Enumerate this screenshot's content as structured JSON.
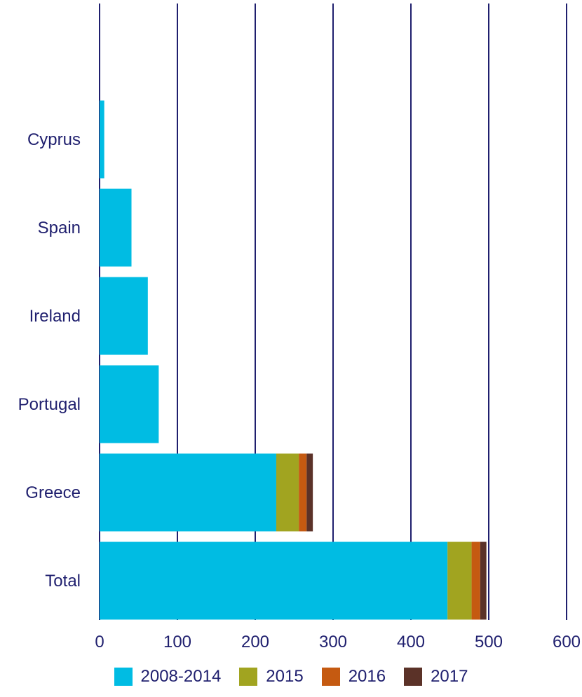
{
  "chart_data": {
    "type": "bar",
    "orientation": "horizontal",
    "stacked": true,
    "title": "",
    "xlabel": "",
    "ylabel": "",
    "categories": [
      "Cyprus",
      "Spain",
      "Ireland",
      "Portugal",
      "Greece",
      "Total"
    ],
    "series": [
      {
        "name": "2008-2014",
        "color": "#00bce3",
        "values": [
          6,
          41,
          62,
          76,
          227,
          447
        ]
      },
      {
        "name": "2015",
        "color": "#a1a420",
        "values": [
          0,
          0,
          0,
          0,
          29,
          31
        ]
      },
      {
        "name": "2016",
        "color": "#c55a11",
        "values": [
          0,
          0,
          0,
          0,
          10,
          11
        ]
      },
      {
        "name": "2017",
        "color": "#5b3228",
        "values": [
          0,
          0,
          0,
          0,
          8,
          8
        ]
      }
    ],
    "xlim": [
      0,
      600
    ],
    "xticks": [
      "0",
      "100",
      "200",
      "300",
      "400",
      "500",
      "600"
    ],
    "xtick_values": [
      0,
      100,
      200,
      300,
      400,
      500,
      600
    ],
    "grid": true,
    "grid_color": "#1f1f6e",
    "legend_position": "bottom"
  }
}
